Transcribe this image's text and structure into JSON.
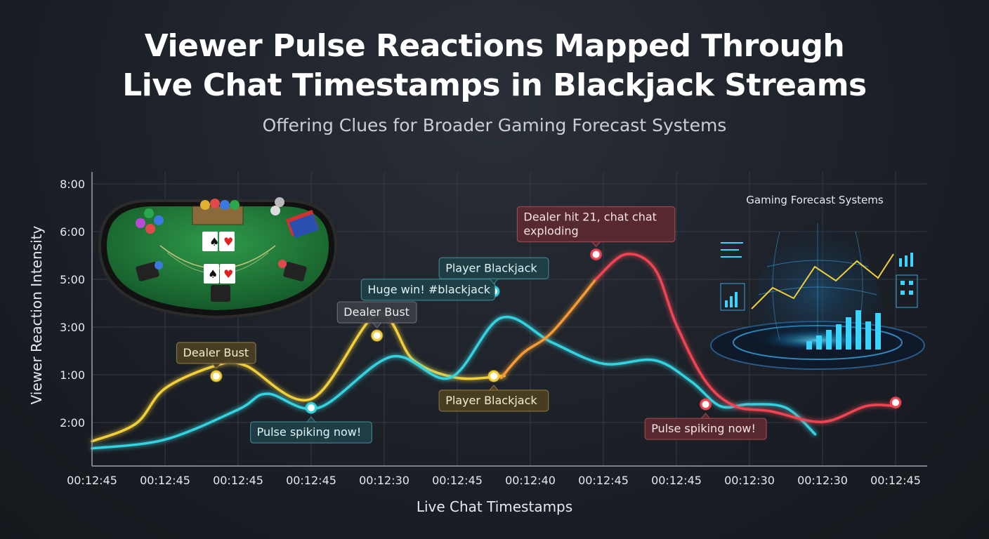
{
  "header": {
    "title_line1": "Viewer Pulse Reactions Mapped Through",
    "title_line2": "Live Chat Timestamps in Blackjack Streams",
    "subtitle": "Offering Clues for Broader Gaming Forecast Systems"
  },
  "illustrations": {
    "table_icon": "blackjack-table-icon",
    "forecast_icon": "hologram-globe-icon",
    "forecast_label": "Gaming Forecast Systems"
  },
  "chart_data": {
    "type": "line",
    "xlabel": "Live Chat Timestamps",
    "ylabel": "Viewer Reaction Intensity",
    "x_tick_labels": [
      "00:12:45",
      "00:12:45",
      "00:12:45",
      "00:12:45",
      "00:12:30",
      "00:12:45",
      "00:12:40",
      "00:12:45",
      "00:12:45",
      "00:12:30",
      "00:12:30",
      "00:12:45"
    ],
    "y_tick_labels": [
      "8:00",
      "6:00",
      "5:00",
      "3:00",
      "1:00",
      "2:00"
    ],
    "y_range": [
      0,
      8
    ],
    "grid": true,
    "colors": {
      "yellow": "#f2cf3a",
      "cyan": "#34d2e0",
      "green": "#5fe3a0",
      "orange": "#f59a35",
      "red": "#ef4453",
      "grid": "#343a44",
      "axis": "#9aa1ab"
    },
    "series": [
      {
        "color_key": "yellow",
        "x": [
          0,
          0.6,
          1.0,
          1.7,
          2.1,
          3.0,
          3.9,
          4.4,
          5.0,
          5.6,
          5.6
        ],
        "y": [
          0.7,
          1.2,
          2.2,
          2.85,
          2.85,
          1.9,
          4.3,
          3.0,
          2.5,
          2.55,
          2.55
        ]
      },
      {
        "color_key": "cyan",
        "x": [
          0,
          1.0,
          2.0,
          2.4,
          3.1,
          4.1,
          4.9,
          5.6,
          6.3,
          7.0,
          7.7,
          8.2,
          8.6,
          9.0,
          9.5,
          9.9
        ],
        "y": [
          0.5,
          0.75,
          1.6,
          2.05,
          1.65,
          3.1,
          2.5,
          4.2,
          3.5,
          2.9,
          3.0,
          2.4,
          1.7,
          1.75,
          1.65,
          0.9
        ]
      },
      {
        "color_key": "orange",
        "x": [
          5.6,
          5.9,
          6.3,
          6.9
        ],
        "y": [
          2.5,
          3.2,
          3.8,
          5.3
        ]
      },
      {
        "color_key": "red",
        "x": [
          6.9,
          7.3,
          7.7,
          8.0,
          8.4,
          8.8,
          9.3,
          10.0,
          10.6,
          11.0
        ],
        "y": [
          5.3,
          6.0,
          5.6,
          4.0,
          2.4,
          1.7,
          1.55,
          1.25,
          1.7,
          1.7
        ]
      }
    ],
    "points": [
      {
        "x": 1.7,
        "y": 2.55,
        "color_key": "yellow"
      },
      {
        "x": 3.0,
        "y": 1.65,
        "color_key": "cyan"
      },
      {
        "x": 3.9,
        "y": 3.7,
        "color_key": "yellow"
      },
      {
        "x": 5.5,
        "y": 4.95,
        "color_key": "cyan"
      },
      {
        "x": 5.5,
        "y": 2.55,
        "color_key": "yellow"
      },
      {
        "x": 6.9,
        "y": 6.0,
        "color_key": "red"
      },
      {
        "x": 8.4,
        "y": 1.75,
        "color_key": "red"
      },
      {
        "x": 11.0,
        "y": 1.8,
        "color_key": "red"
      }
    ],
    "annotations": [
      {
        "text": "Dealer Bust",
        "x": 1.7,
        "y": 2.55,
        "style": "amber",
        "place": "above"
      },
      {
        "text": "Pulse spiking now!",
        "x": 3.0,
        "y": 1.65,
        "style": "teal",
        "place": "below"
      },
      {
        "text": "Dealer Bust",
        "x": 3.9,
        "y": 3.7,
        "style": "gray",
        "place": "above"
      },
      {
        "text": "Huge win! #blackjack",
        "x": 4.6,
        "y": 5.0,
        "style": "teal",
        "place": "anchor-left"
      },
      {
        "text": "Player Blackjack",
        "x": 5.5,
        "y": 4.95,
        "style": "teal",
        "place": "above"
      },
      {
        "text": "Player Blackjack",
        "x": 5.5,
        "y": 2.55,
        "style": "amber",
        "place": "below"
      },
      {
        "text": "Dealer hit 21, chat chat\nexploding",
        "x": 6.9,
        "y": 6.0,
        "style": "red",
        "place": "above"
      },
      {
        "text": "Pulse spiking now!",
        "x": 8.4,
        "y": 1.75,
        "style": "red",
        "place": "below"
      }
    ]
  }
}
